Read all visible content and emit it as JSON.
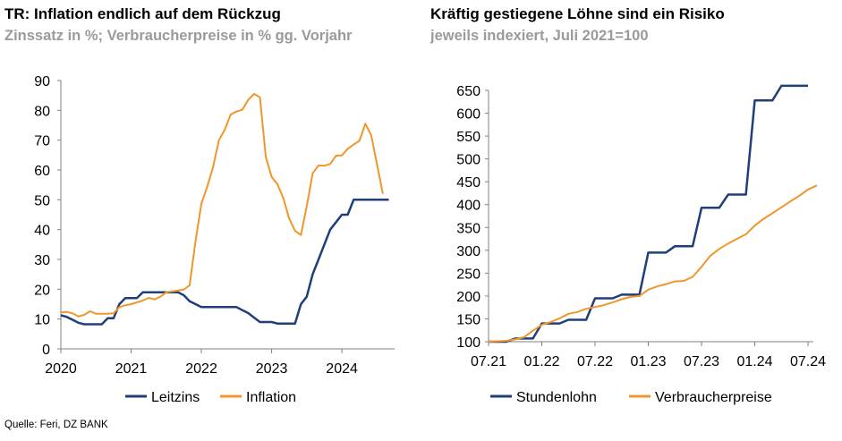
{
  "left": {
    "title": "TR: Inflation endlich auf dem Rückzug",
    "subtitle": "Zinssatz in %; Verbraucherpreise in % gg. Vorjahr"
  },
  "right": {
    "title": "Kräftig gestiegene Löhne sind ein Risiko",
    "subtitle": "jeweils indexiert, Juli 2021=100"
  },
  "source": "Quelle: Feri, DZ BANK",
  "colors": {
    "navy": "#1f3f7a",
    "orange": "#f0962a",
    "axis": "#808080"
  },
  "chart_data": [
    {
      "type": "line",
      "title": "TR: Inflation endlich auf dem Rückzug",
      "subtitle": "Zinssatz in %; Verbraucherpreise in % gg. Vorjahr",
      "x_unit": "year",
      "xlim": [
        2020.0,
        2024.75
      ],
      "ylim": [
        0,
        90
      ],
      "y_ticks": [
        0,
        10,
        20,
        30,
        40,
        50,
        60,
        70,
        80,
        90
      ],
      "x_ticks": [
        2020,
        2021,
        2022,
        2023,
        2024
      ],
      "x_tick_labels": [
        "2020",
        "2021",
        "2022",
        "2023",
        "2024"
      ],
      "legend": [
        "Leitzins",
        "Inflation"
      ],
      "legend_position": "bottom",
      "grid": false,
      "series": [
        {
          "name": "Leitzins",
          "color": "#1f3f7a",
          "points": [
            [
              2020.0,
              11.25
            ],
            [
              2020.083,
              10.75
            ],
            [
              2020.167,
              9.75
            ],
            [
              2020.25,
              8.75
            ],
            [
              2020.333,
              8.25
            ],
            [
              2020.417,
              8.25
            ],
            [
              2020.5,
              8.25
            ],
            [
              2020.583,
              8.25
            ],
            [
              2020.667,
              10.25
            ],
            [
              2020.75,
              10.25
            ],
            [
              2020.833,
              15.0
            ],
            [
              2020.917,
              17.0
            ],
            [
              2021.0,
              17.0
            ],
            [
              2021.083,
              17.0
            ],
            [
              2021.167,
              19.0
            ],
            [
              2021.25,
              19.0
            ],
            [
              2021.333,
              19.0
            ],
            [
              2021.417,
              19.0
            ],
            [
              2021.5,
              19.0
            ],
            [
              2021.583,
              19.0
            ],
            [
              2021.667,
              19.0
            ],
            [
              2021.75,
              18.0
            ],
            [
              2021.833,
              16.0
            ],
            [
              2021.917,
              15.0
            ],
            [
              2022.0,
              14.0
            ],
            [
              2022.083,
              14.0
            ],
            [
              2022.167,
              14.0
            ],
            [
              2022.25,
              14.0
            ],
            [
              2022.333,
              14.0
            ],
            [
              2022.417,
              14.0
            ],
            [
              2022.5,
              14.0
            ],
            [
              2022.583,
              13.0
            ],
            [
              2022.667,
              12.0
            ],
            [
              2022.75,
              10.5
            ],
            [
              2022.833,
              9.0
            ],
            [
              2022.917,
              9.0
            ],
            [
              2023.0,
              9.0
            ],
            [
              2023.083,
              8.5
            ],
            [
              2023.167,
              8.5
            ],
            [
              2023.25,
              8.5
            ],
            [
              2023.333,
              8.5
            ],
            [
              2023.417,
              15.0
            ],
            [
              2023.5,
              17.5
            ],
            [
              2023.583,
              25.0
            ],
            [
              2023.667,
              30.0
            ],
            [
              2023.75,
              35.0
            ],
            [
              2023.833,
              40.0
            ],
            [
              2023.917,
              42.5
            ],
            [
              2024.0,
              45.0
            ],
            [
              2024.083,
              45.0
            ],
            [
              2024.167,
              50.0
            ],
            [
              2024.25,
              50.0
            ],
            [
              2024.333,
              50.0
            ],
            [
              2024.417,
              50.0
            ],
            [
              2024.5,
              50.0
            ],
            [
              2024.583,
              50.0
            ],
            [
              2024.667,
              50.0
            ]
          ]
        },
        {
          "name": "Inflation",
          "color": "#f0962a",
          "points": [
            [
              2020.0,
              12.2
            ],
            [
              2020.083,
              12.4
            ],
            [
              2020.167,
              11.9
            ],
            [
              2020.25,
              10.9
            ],
            [
              2020.333,
              11.4
            ],
            [
              2020.417,
              12.6
            ],
            [
              2020.5,
              11.8
            ],
            [
              2020.583,
              11.8
            ],
            [
              2020.667,
              11.8
            ],
            [
              2020.75,
              11.9
            ],
            [
              2020.833,
              14.0
            ],
            [
              2020.917,
              14.6
            ],
            [
              2021.0,
              15.0
            ],
            [
              2021.083,
              15.6
            ],
            [
              2021.167,
              16.2
            ],
            [
              2021.25,
              17.1
            ],
            [
              2021.333,
              16.6
            ],
            [
              2021.417,
              17.5
            ],
            [
              2021.5,
              19.0
            ],
            [
              2021.583,
              19.3
            ],
            [
              2021.667,
              19.6
            ],
            [
              2021.75,
              19.9
            ],
            [
              2021.833,
              21.3
            ],
            [
              2021.917,
              36.1
            ],
            [
              2022.0,
              48.7
            ],
            [
              2022.083,
              54.4
            ],
            [
              2022.167,
              61.1
            ],
            [
              2022.25,
              70.0
            ],
            [
              2022.333,
              73.5
            ],
            [
              2022.417,
              78.6
            ],
            [
              2022.5,
              79.6
            ],
            [
              2022.583,
              80.2
            ],
            [
              2022.667,
              83.5
            ],
            [
              2022.75,
              85.5
            ],
            [
              2022.833,
              84.4
            ],
            [
              2022.917,
              64.3
            ],
            [
              2023.0,
              57.7
            ],
            [
              2023.083,
              55.2
            ],
            [
              2023.167,
              50.5
            ],
            [
              2023.25,
              43.7
            ],
            [
              2023.333,
              39.6
            ],
            [
              2023.417,
              38.2
            ],
            [
              2023.5,
              47.8
            ],
            [
              2023.583,
              58.9
            ],
            [
              2023.667,
              61.5
            ],
            [
              2023.75,
              61.4
            ],
            [
              2023.833,
              62.0
            ],
            [
              2023.917,
              64.8
            ],
            [
              2024.0,
              64.9
            ],
            [
              2024.083,
              67.1
            ],
            [
              2024.167,
              68.5
            ],
            [
              2024.25,
              69.8
            ],
            [
              2024.333,
              75.5
            ],
            [
              2024.417,
              71.6
            ],
            [
              2024.5,
              61.8
            ],
            [
              2024.583,
              52.0
            ]
          ]
        }
      ]
    },
    {
      "type": "line",
      "title": "Kräftig gestiegene Löhne sind ein Risiko",
      "subtitle": "jeweils indexiert, Juli 2021=100",
      "x_unit": "month",
      "xlim": [
        "2021-07",
        "2024-07"
      ],
      "ylim": [
        100,
        650
      ],
      "y_ticks": [
        100,
        150,
        200,
        250,
        300,
        350,
        400,
        450,
        500,
        550,
        600,
        650
      ],
      "x_ticks": [
        "2021-07",
        "2022-01",
        "2022-07",
        "2023-01",
        "2023-07",
        "2024-01",
        "2024-07"
      ],
      "x_tick_labels": [
        "07.21",
        "01.22",
        "07.22",
        "01.23",
        "07.23",
        "01.24",
        "07.24"
      ],
      "legend": [
        "Stundenlohn",
        "Verbraucherpreise"
      ],
      "legend_position": "bottom",
      "grid": false,
      "series": [
        {
          "name": "Stundenlohn",
          "color": "#1f3f7a",
          "points": [
            [
              "2021-07",
              100
            ],
            [
              "2021-08",
              100
            ],
            [
              "2021-09",
              100
            ],
            [
              "2021-10",
              107
            ],
            [
              "2021-11",
              107
            ],
            [
              "2021-12",
              107
            ],
            [
              "2022-01",
              140
            ],
            [
              "2022-02",
              140
            ],
            [
              "2022-03",
              140
            ],
            [
              "2022-04",
              148
            ],
            [
              "2022-05",
              148
            ],
            [
              "2022-06",
              148
            ],
            [
              "2022-07",
              195
            ],
            [
              "2022-08",
              195
            ],
            [
              "2022-09",
              195
            ],
            [
              "2022-10",
              203
            ],
            [
              "2022-11",
              203
            ],
            [
              "2022-12",
              203
            ],
            [
              "2023-01",
              295
            ],
            [
              "2023-02",
              295
            ],
            [
              "2023-03",
              295
            ],
            [
              "2023-04",
              309
            ],
            [
              "2023-05",
              309
            ],
            [
              "2023-06",
              309
            ],
            [
              "2023-07",
              393
            ],
            [
              "2023-08",
              393
            ],
            [
              "2023-09",
              393
            ],
            [
              "2023-10",
              422
            ],
            [
              "2023-11",
              422
            ],
            [
              "2023-12",
              422
            ],
            [
              "2024-01",
              628
            ],
            [
              "2024-02",
              628
            ],
            [
              "2024-03",
              628
            ],
            [
              "2024-04",
              660
            ],
            [
              "2024-05",
              660
            ],
            [
              "2024-06",
              660
            ],
            [
              "2024-07",
              660
            ]
          ]
        },
        {
          "name": "Verbraucherpreise",
          "color": "#f0962a",
          "points": [
            [
              "2021-07",
              100
            ],
            [
              "2021-08",
              101
            ],
            [
              "2021-09",
              102
            ],
            [
              "2021-10",
              105
            ],
            [
              "2021-11",
              110
            ],
            [
              "2021-12",
              124
            ],
            [
              "2022-01",
              137
            ],
            [
              "2022-02",
              143
            ],
            [
              "2022-03",
              151
            ],
            [
              "2022-04",
              161
            ],
            [
              "2022-05",
              165
            ],
            [
              "2022-06",
              172
            ],
            [
              "2022-07",
              176
            ],
            [
              "2022-08",
              180
            ],
            [
              "2022-09",
              186
            ],
            [
              "2022-10",
              193
            ],
            [
              "2022-11",
              198
            ],
            [
              "2022-12",
              200
            ],
            [
              "2023-01",
              214
            ],
            [
              "2023-02",
              221
            ],
            [
              "2023-03",
              226
            ],
            [
              "2023-04",
              232
            ],
            [
              "2023-05",
              233
            ],
            [
              "2023-06",
              242
            ],
            [
              "2023-07",
              264
            ],
            [
              "2023-08",
              288
            ],
            [
              "2023-09",
              303
            ],
            [
              "2023-10",
              315
            ],
            [
              "2023-11",
              325
            ],
            [
              "2023-12",
              335
            ],
            [
              "2024-01",
              354
            ],
            [
              "2024-02",
              369
            ],
            [
              "2024-03",
              381
            ],
            [
              "2024-04",
              394
            ],
            [
              "2024-05",
              407
            ],
            [
              "2024-06",
              419
            ],
            [
              "2024-07",
              433
            ],
            [
              "2024-08",
              442
            ]
          ]
        }
      ]
    }
  ]
}
